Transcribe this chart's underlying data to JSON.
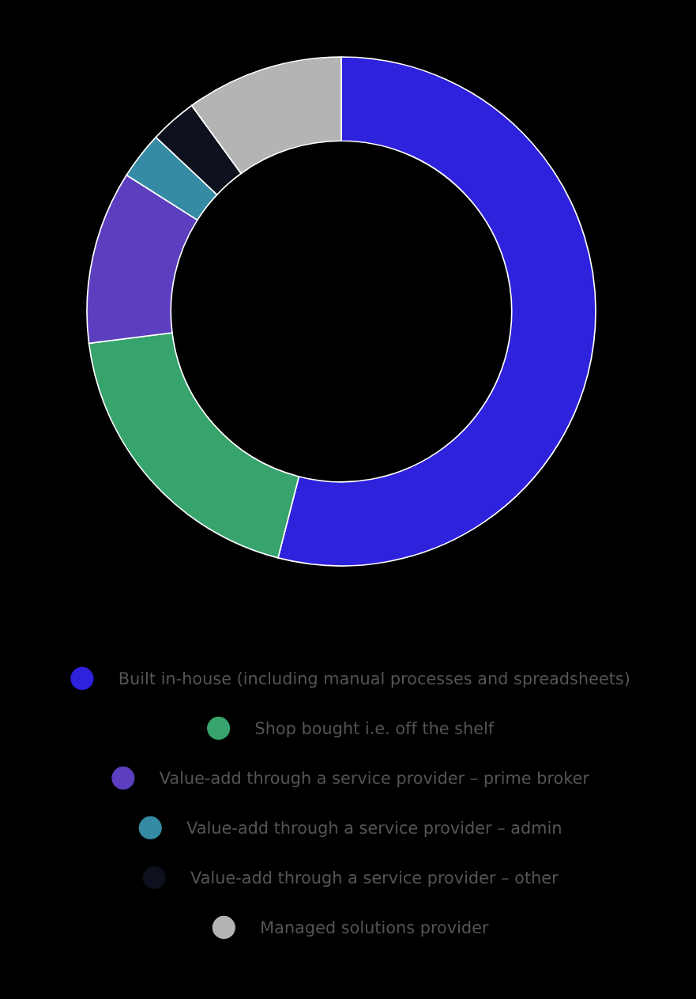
{
  "chart_data": {
    "type": "donut",
    "categories": [
      "Built in-house (including manual processes and spreadsheets)",
      "Shop bought i.e. off the shelf",
      "Value-add through a service provider – prime broker",
      "Value-add through a service provider – admin",
      "Value-add through a service provider – other",
      "Managed solutions provider"
    ],
    "values": [
      54,
      19,
      11,
      3,
      3,
      10
    ],
    "colors": [
      "#2e22dd",
      "#36a46c",
      "#5b3fbf",
      "#358ba3",
      "#0d111d",
      "#b4b4b4"
    ],
    "legend": "bottom"
  }
}
